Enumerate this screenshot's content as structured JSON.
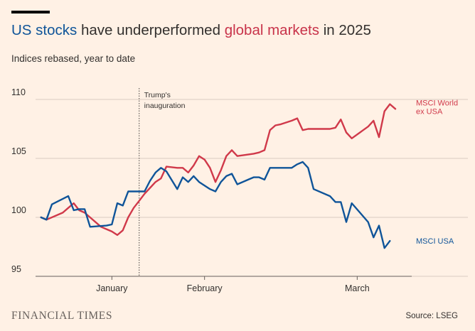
{
  "branding": {
    "publisher": "FINANCIAL TIMES",
    "source": "Source: LSEG"
  },
  "header": {
    "title_part1": "US stocks",
    "title_part2": " have underperformed ",
    "title_part3": "global markets",
    "title_part4": " in 2025",
    "subtitle": "Indices rebased, year to date"
  },
  "colors": {
    "background": "#fff1e5",
    "us_series": "#0f5499",
    "world_series": "#d0394a",
    "grid": "#d9ccc1",
    "text": "#33302e"
  },
  "chart_data": {
    "type": "line",
    "title": "US stocks have underperformed global markets in 2025",
    "subtitle": "Indices rebased, year to date",
    "xlabel": "",
    "ylabel": "",
    "x_type": "date",
    "xlim": [
      "2025-01-01",
      "2025-03-11"
    ],
    "ylim": [
      95,
      110
    ],
    "yticks": [
      95,
      100,
      105,
      110
    ],
    "xticks": [
      {
        "date": "2025-01-15",
        "label": "January"
      },
      {
        "date": "2025-02-01",
        "label": "February"
      },
      {
        "date": "2025-03-01",
        "label": "March"
      }
    ],
    "grid": "horizontal",
    "annotations": [
      {
        "date": "2025-01-20",
        "label_lines": [
          "Trump's",
          "inauguration"
        ],
        "style": "dotted-vertical-line"
      }
    ],
    "series": [
      {
        "name": "MSCI World ex USA",
        "label_lines": [
          "MSCI World",
          "ex USA"
        ],
        "color": "#d0394a",
        "points": [
          [
            "2025-01-02",
            100.0
          ],
          [
            "2025-01-03",
            99.8
          ],
          [
            "2025-01-06",
            100.4
          ],
          [
            "2025-01-07",
            100.8
          ],
          [
            "2025-01-08",
            101.2
          ],
          [
            "2025-01-09",
            100.6
          ],
          [
            "2025-01-10",
            100.4
          ],
          [
            "2025-01-13",
            99.2
          ],
          [
            "2025-01-14",
            99.0
          ],
          [
            "2025-01-15",
            98.8
          ],
          [
            "2025-01-16",
            98.5
          ],
          [
            "2025-01-17",
            98.9
          ],
          [
            "2025-01-18",
            100.0
          ],
          [
            "2025-01-19",
            100.8
          ],
          [
            "2025-01-20",
            101.4
          ],
          [
            "2025-01-21",
            102.0
          ],
          [
            "2025-01-22",
            102.5
          ],
          [
            "2025-01-23",
            103.0
          ],
          [
            "2025-01-24",
            103.3
          ],
          [
            "2025-01-25",
            104.3
          ],
          [
            "2025-01-27",
            104.2
          ],
          [
            "2025-01-28",
            104.2
          ],
          [
            "2025-01-29",
            103.8
          ],
          [
            "2025-01-30",
            104.4
          ],
          [
            "2025-01-31",
            105.2
          ],
          [
            "2025-02-01",
            104.9
          ],
          [
            "2025-02-02",
            104.2
          ],
          [
            "2025-02-03",
            103.0
          ],
          [
            "2025-02-04",
            104.0
          ],
          [
            "2025-02-05",
            105.2
          ],
          [
            "2025-02-06",
            105.7
          ],
          [
            "2025-02-07",
            105.2
          ],
          [
            "2025-02-10",
            105.4
          ],
          [
            "2025-02-11",
            105.5
          ],
          [
            "2025-02-12",
            105.7
          ],
          [
            "2025-02-13",
            107.4
          ],
          [
            "2025-02-14",
            107.8
          ],
          [
            "2025-02-15",
            107.9
          ],
          [
            "2025-02-17",
            108.2
          ],
          [
            "2025-02-18",
            108.4
          ],
          [
            "2025-02-19",
            107.4
          ],
          [
            "2025-02-20",
            107.5
          ],
          [
            "2025-02-21",
            107.5
          ],
          [
            "2025-02-24",
            107.5
          ],
          [
            "2025-02-25",
            107.6
          ],
          [
            "2025-02-26",
            108.3
          ],
          [
            "2025-02-27",
            107.2
          ],
          [
            "2025-02-28",
            106.7
          ],
          [
            "2025-03-03",
            107.7
          ],
          [
            "2025-03-04",
            108.2
          ],
          [
            "2025-03-05",
            106.8
          ],
          [
            "2025-03-06",
            109.0
          ],
          [
            "2025-03-07",
            109.6
          ],
          [
            "2025-03-08",
            109.2
          ]
        ]
      },
      {
        "name": "MSCI USA",
        "label_lines": [
          "MSCI USA"
        ],
        "color": "#0f5499",
        "points": [
          [
            "2025-01-02",
            100.0
          ],
          [
            "2025-01-03",
            99.8
          ],
          [
            "2025-01-04",
            101.1
          ],
          [
            "2025-01-07",
            101.8
          ],
          [
            "2025-01-08",
            100.6
          ],
          [
            "2025-01-09",
            100.7
          ],
          [
            "2025-01-10",
            100.7
          ],
          [
            "2025-01-11",
            99.2
          ],
          [
            "2025-01-14",
            99.3
          ],
          [
            "2025-01-15",
            99.4
          ],
          [
            "2025-01-16",
            101.2
          ],
          [
            "2025-01-17",
            101.0
          ],
          [
            "2025-01-18",
            102.2
          ],
          [
            "2025-01-20",
            102.2
          ],
          [
            "2025-01-21",
            102.2
          ],
          [
            "2025-01-22",
            103.1
          ],
          [
            "2025-01-23",
            103.8
          ],
          [
            "2025-01-24",
            104.2
          ],
          [
            "2025-01-25",
            103.9
          ],
          [
            "2025-01-27",
            102.4
          ],
          [
            "2025-01-28",
            103.4
          ],
          [
            "2025-01-29",
            103.0
          ],
          [
            "2025-01-30",
            103.5
          ],
          [
            "2025-01-31",
            103.0
          ],
          [
            "2025-02-02",
            102.4
          ],
          [
            "2025-02-03",
            102.2
          ],
          [
            "2025-02-04",
            103.0
          ],
          [
            "2025-02-05",
            103.5
          ],
          [
            "2025-02-06",
            103.7
          ],
          [
            "2025-02-07",
            102.8
          ],
          [
            "2025-02-09",
            103.2
          ],
          [
            "2025-02-10",
            103.4
          ],
          [
            "2025-02-11",
            103.4
          ],
          [
            "2025-02-12",
            103.2
          ],
          [
            "2025-02-13",
            104.2
          ],
          [
            "2025-02-14",
            104.2
          ],
          [
            "2025-02-17",
            104.2
          ],
          [
            "2025-02-18",
            104.5
          ],
          [
            "2025-02-19",
            104.7
          ],
          [
            "2025-02-20",
            104.2
          ],
          [
            "2025-02-21",
            102.4
          ],
          [
            "2025-02-24",
            101.8
          ],
          [
            "2025-02-25",
            101.3
          ],
          [
            "2025-02-26",
            101.3
          ],
          [
            "2025-02-27",
            99.6
          ],
          [
            "2025-02-28",
            101.2
          ],
          [
            "2025-03-03",
            99.6
          ],
          [
            "2025-03-04",
            98.3
          ],
          [
            "2025-03-05",
            99.3
          ],
          [
            "2025-03-06",
            97.4
          ],
          [
            "2025-03-07",
            98.0
          ]
        ]
      }
    ]
  }
}
